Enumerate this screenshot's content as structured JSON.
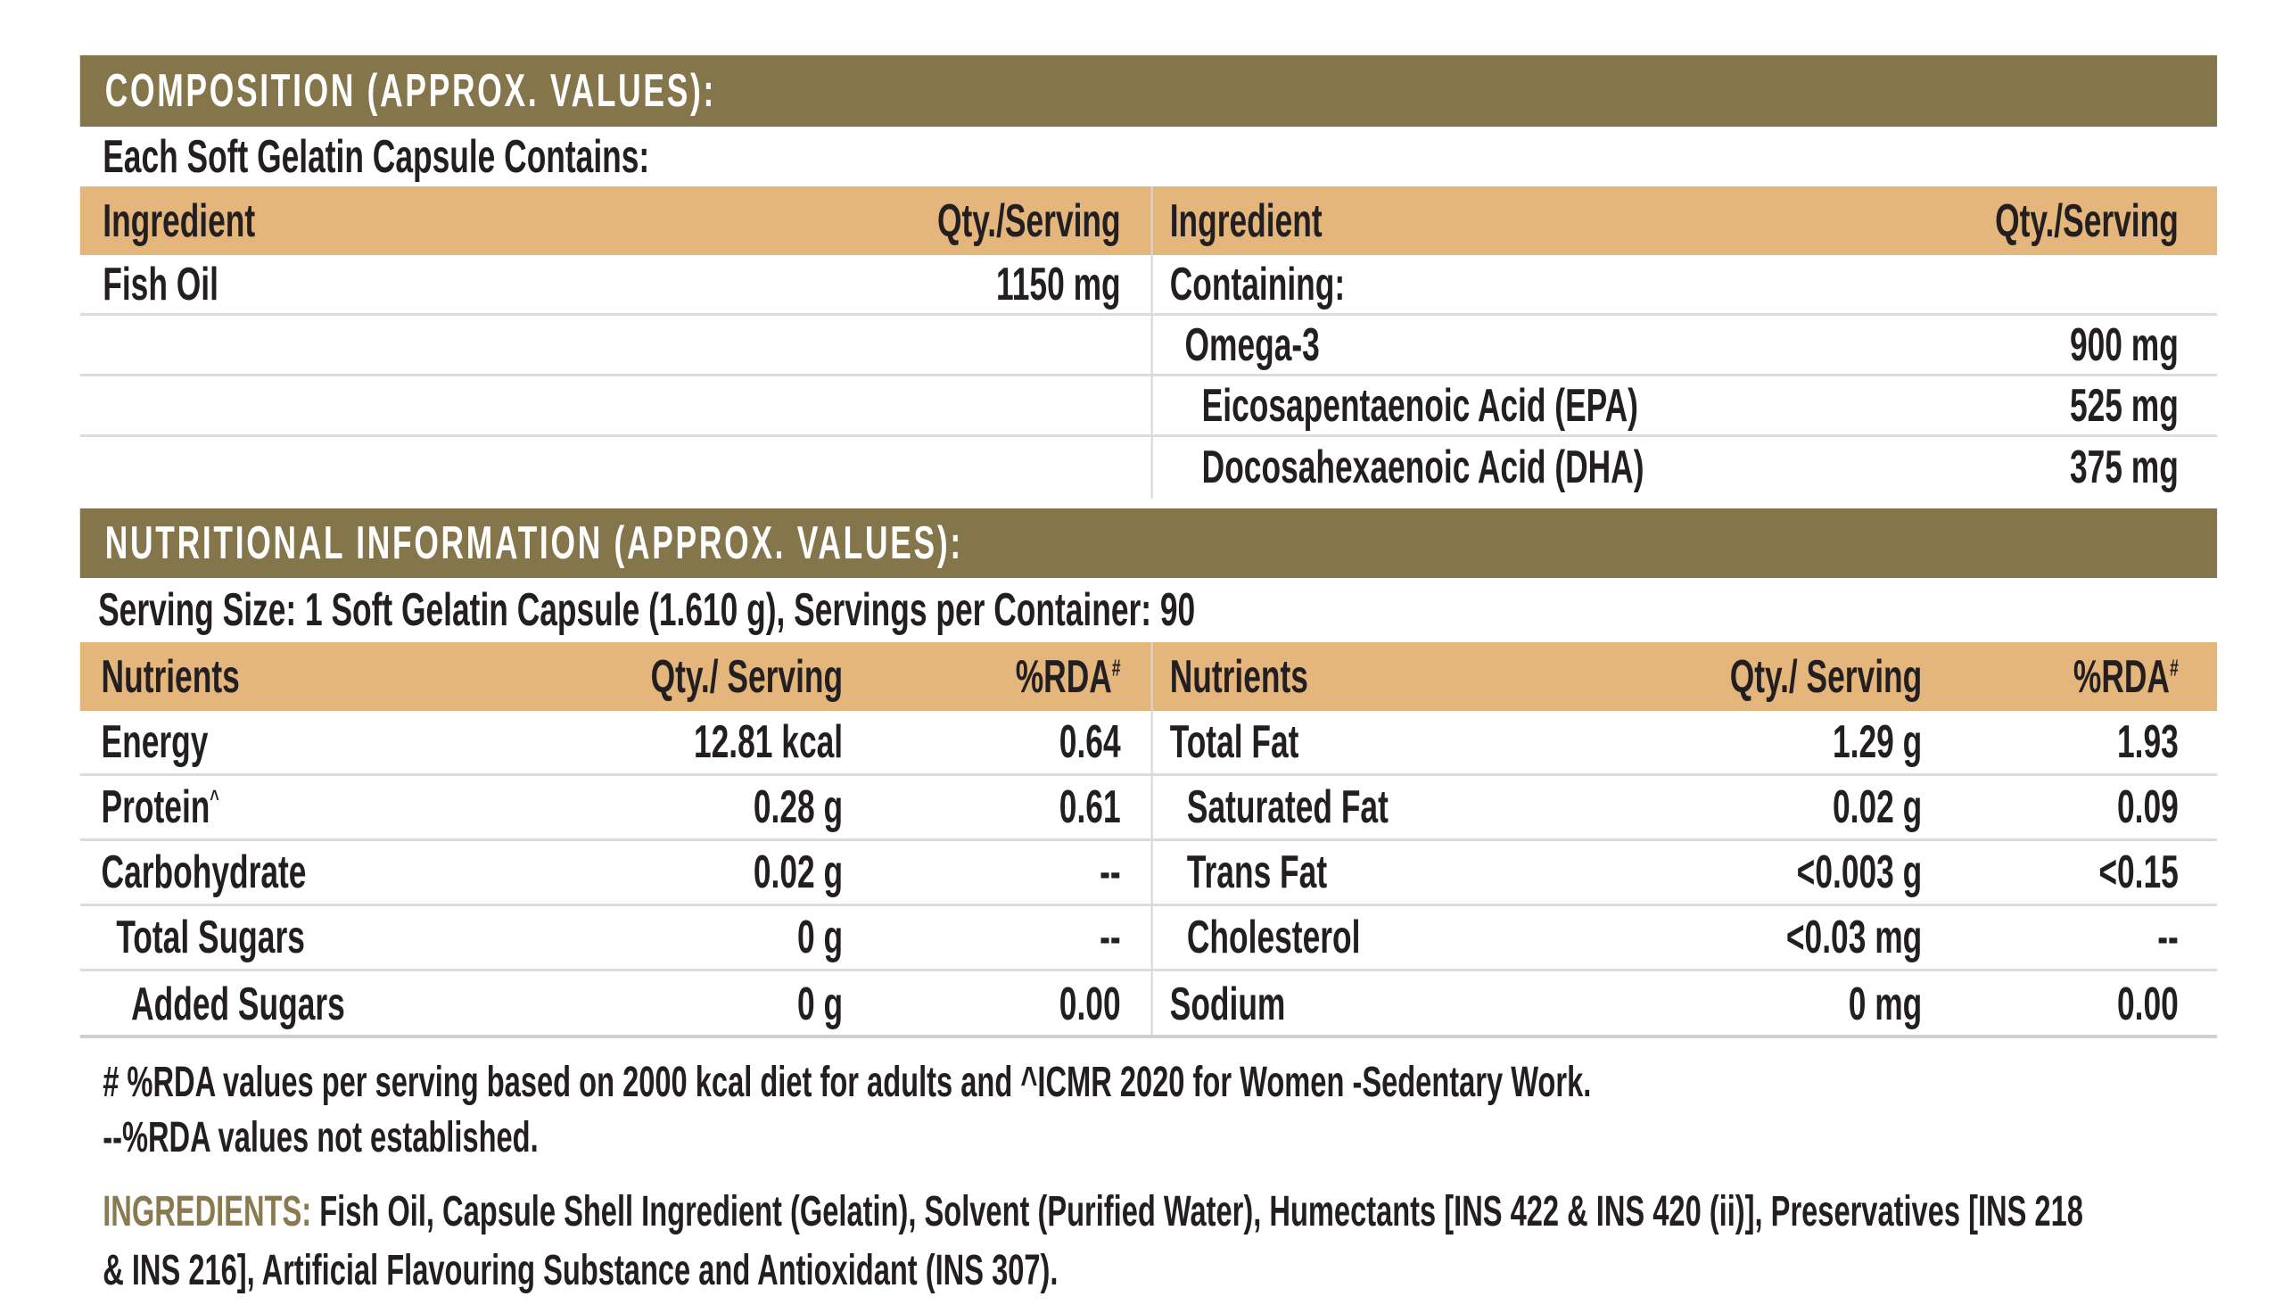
{
  "composition": {
    "title": "COMPOSITION (APPROX. VALUES):",
    "subtitle": "Each Soft Gelatin Capsule Contains:",
    "headers": {
      "ingredient": "Ingredient",
      "qty": "Qty./Serving"
    },
    "left_rows": [
      {
        "name": "Fish Oil",
        "qty": "1150 mg"
      }
    ],
    "right_rows": [
      {
        "name": "Containing:",
        "qty": ""
      },
      {
        "name": "Omega-3",
        "qty": "900 mg"
      },
      {
        "name": "Eicosapentaenoic Acid (EPA)",
        "qty": "525 mg"
      },
      {
        "name": "Docosahexaenoic Acid (DHA)",
        "qty": "375 mg"
      }
    ]
  },
  "nutrition": {
    "title": "NUTRITIONAL INFORMATION (APPROX. VALUES):",
    "serving": "Serving Size: 1 Soft Gelatin Capsule (1.610 g), Servings per Container: 90",
    "headers": {
      "nutrients": "Nutrients",
      "qty": "Qty./ Serving",
      "rda": "%RDA",
      "rda_mark": "#"
    },
    "left_rows": [
      {
        "name": "Energy",
        "qty": "12.81 kcal",
        "rda": "0.64"
      },
      {
        "name": "Protein",
        "mark": "^",
        "qty": "0.28 g",
        "rda": "0.61"
      },
      {
        "name": "Carbohydrate",
        "qty": "0.02 g",
        "rda": "--"
      },
      {
        "name": "Total Sugars",
        "qty": "0 g",
        "rda": "--"
      },
      {
        "name": "Added Sugars",
        "qty": "0 g",
        "rda": "0.00"
      }
    ],
    "right_rows": [
      {
        "name": "Total Fat",
        "qty": "1.29 g",
        "rda": "1.93"
      },
      {
        "name": "Saturated Fat",
        "qty": "0.02 g",
        "rda": "0.09"
      },
      {
        "name": "Trans Fat",
        "qty": "<0.003 g",
        "rda": "<0.15"
      },
      {
        "name": "Cholesterol",
        "qty": "<0.03 mg",
        "rda": "--"
      },
      {
        "name": "Sodium",
        "qty": "0 mg",
        "rda": "0.00"
      }
    ]
  },
  "footnotes": [
    "# %RDA values per serving based on 2000 kcal diet for adults and ^ICMR 2020 for Women -Sedentary Work.",
    "--%RDA values not established."
  ],
  "ingredients": {
    "label": "INGREDIENTS:",
    "line1": "Fish Oil, Capsule Shell Ingredient (Gelatin), Solvent (Purified Water), Humectants [INS 422 & INS 420 (ii)], Preservatives [INS 218",
    "line2": "& INS 216], Artificial Flavouring Substance and Antioxidant (INS 307)."
  },
  "colors": {
    "band": "#85754b",
    "header": "#e4b67c",
    "label": "#8a7a50"
  }
}
